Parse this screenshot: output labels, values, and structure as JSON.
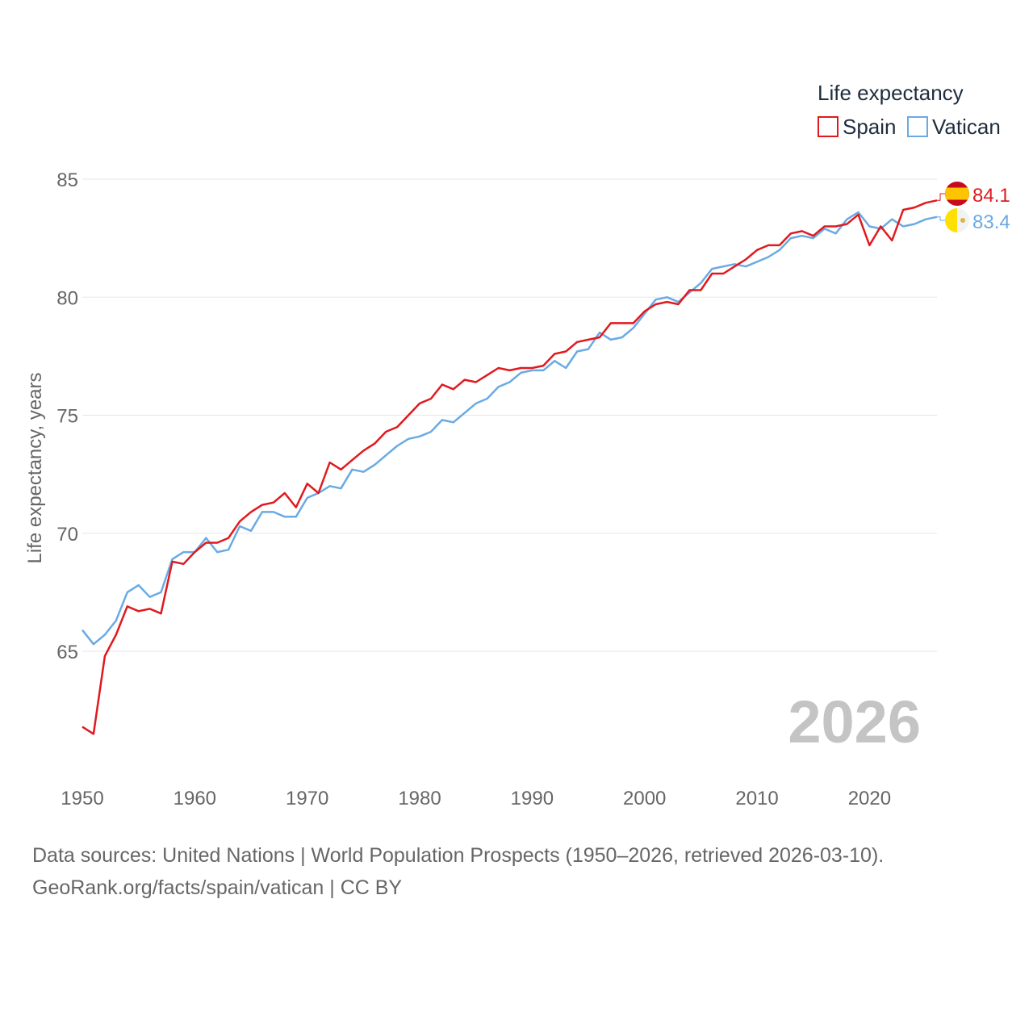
{
  "chart_data": {
    "type": "line",
    "ylabel": "Life expectancy, years",
    "xlabel": "",
    "xlim": [
      1950,
      2026
    ],
    "ylim": [
      60.8,
      86.2
    ],
    "x_ticks": [
      1950,
      1960,
      1970,
      1980,
      1990,
      2000,
      2010,
      2020
    ],
    "y_ticks": [
      65,
      70,
      75,
      80,
      85
    ],
    "grid": true,
    "legend": {
      "title": "Life expectancy",
      "position": "top-right"
    },
    "year_stamp": "2026",
    "x": [
      1950,
      1951,
      1952,
      1953,
      1954,
      1955,
      1956,
      1957,
      1958,
      1959,
      1960,
      1961,
      1962,
      1963,
      1964,
      1965,
      1966,
      1967,
      1968,
      1969,
      1970,
      1971,
      1972,
      1973,
      1974,
      1975,
      1976,
      1977,
      1978,
      1979,
      1980,
      1981,
      1982,
      1983,
      1984,
      1985,
      1986,
      1987,
      1988,
      1989,
      1990,
      1991,
      1992,
      1993,
      1994,
      1995,
      1996,
      1997,
      1998,
      1999,
      2000,
      2001,
      2002,
      2003,
      2004,
      2005,
      2006,
      2007,
      2008,
      2009,
      2010,
      2011,
      2012,
      2013,
      2014,
      2015,
      2016,
      2017,
      2018,
      2019,
      2020,
      2021,
      2022,
      2023,
      2024,
      2025,
      2026
    ],
    "series": [
      {
        "name": "Spain",
        "color": "#e0191e",
        "end_label": "84.1",
        "values": [
          61.8,
          61.5,
          64.8,
          65.7,
          66.9,
          66.7,
          66.8,
          66.6,
          68.8,
          68.7,
          69.2,
          69.6,
          69.6,
          69.8,
          70.5,
          70.9,
          71.2,
          71.3,
          71.7,
          71.1,
          72.1,
          71.7,
          73.0,
          72.7,
          73.1,
          73.5,
          73.8,
          74.3,
          74.5,
          75.0,
          75.5,
          75.7,
          76.3,
          76.1,
          76.5,
          76.4,
          76.7,
          77.0,
          76.9,
          77.0,
          77.0,
          77.1,
          77.6,
          77.7,
          78.1,
          78.2,
          78.3,
          78.9,
          78.9,
          78.9,
          79.4,
          79.7,
          79.8,
          79.7,
          80.3,
          80.3,
          81.0,
          81.0,
          81.3,
          81.6,
          82.0,
          82.2,
          82.2,
          82.7,
          82.8,
          82.6,
          83.0,
          83.0,
          83.1,
          83.5,
          82.2,
          83.0,
          82.4,
          83.7,
          83.8,
          84.0,
          84.1
        ]
      },
      {
        "name": "Vatican",
        "color": "#6aaae4",
        "end_label": "83.4",
        "values": [
          65.9,
          65.3,
          65.7,
          66.3,
          67.5,
          67.8,
          67.3,
          67.5,
          68.9,
          69.2,
          69.2,
          69.8,
          69.2,
          69.3,
          70.3,
          70.1,
          70.9,
          70.9,
          70.7,
          70.7,
          71.5,
          71.7,
          72.0,
          71.9,
          72.7,
          72.6,
          72.9,
          73.3,
          73.7,
          74.0,
          74.1,
          74.3,
          74.8,
          74.7,
          75.1,
          75.5,
          75.7,
          76.2,
          76.4,
          76.8,
          76.9,
          76.9,
          77.3,
          77.0,
          77.7,
          77.8,
          78.5,
          78.2,
          78.3,
          78.7,
          79.3,
          79.9,
          80.0,
          79.8,
          80.2,
          80.6,
          81.2,
          81.3,
          81.4,
          81.3,
          81.5,
          81.7,
          82.0,
          82.5,
          82.6,
          82.5,
          82.9,
          82.7,
          83.3,
          83.6,
          83.0,
          82.9,
          83.3,
          83.0,
          83.1,
          83.3,
          83.4
        ]
      }
    ]
  },
  "footer": {
    "sources": "Data sources: United Nations | World Population Prospects (1950–2026, retrieved 2026-03-10).",
    "credit": "GeoRank.org/facts/spain/vatican | CC BY"
  }
}
